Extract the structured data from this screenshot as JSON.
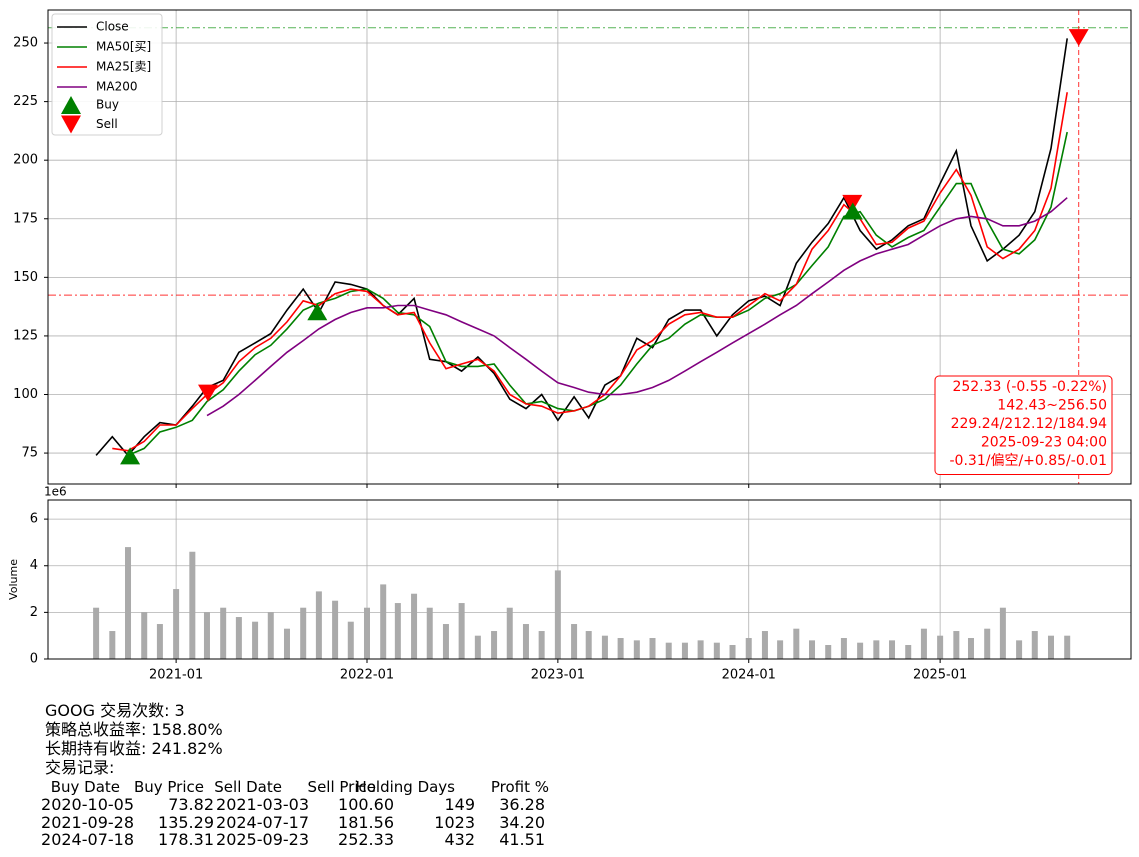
{
  "chart_data": [
    {
      "type": "line",
      "x": [
        "2020-08",
        "2020-09",
        "2020-10",
        "2020-11",
        "2020-12",
        "2021-01",
        "2021-02",
        "2021-03",
        "2021-04",
        "2021-05",
        "2021-06",
        "2021-07",
        "2021-08",
        "2021-09",
        "2021-10",
        "2021-11",
        "2021-12",
        "2022-01",
        "2022-02",
        "2022-03",
        "2022-04",
        "2022-05",
        "2022-06",
        "2022-07",
        "2022-08",
        "2022-09",
        "2022-10",
        "2022-11",
        "2022-12",
        "2023-01",
        "2023-02",
        "2023-03",
        "2023-04",
        "2023-05",
        "2023-06",
        "2023-07",
        "2023-08",
        "2023-09",
        "2023-10",
        "2023-11",
        "2023-12",
        "2024-01",
        "2024-02",
        "2024-03",
        "2024-04",
        "2024-05",
        "2024-06",
        "2024-07",
        "2024-08",
        "2024-09",
        "2024-10",
        "2024-11",
        "2024-12",
        "2025-01",
        "2025-02",
        "2025-03",
        "2025-04",
        "2025-05",
        "2025-06",
        "2025-07",
        "2025-08",
        "2025-09"
      ],
      "series": [
        {
          "name": "Close",
          "color": "#000000",
          "values": [
            74,
            82,
            74,
            82,
            88,
            87,
            95,
            103,
            106,
            118,
            122,
            126,
            136,
            145,
            135,
            148,
            147,
            145,
            138,
            134,
            141,
            115,
            114,
            110,
            116,
            109,
            98,
            94,
            100,
            89,
            99,
            90,
            104,
            108,
            124,
            120,
            132,
            136,
            136,
            125,
            134,
            140,
            142,
            138,
            156,
            165,
            173,
            184,
            170,
            162,
            166,
            172,
            175,
            190,
            204,
            172,
            157,
            162,
            168,
            178,
            205,
            252
          ]
        },
        {
          "name": "MA50[买]",
          "color": "#008000",
          "values": [
            null,
            null,
            74,
            77,
            84,
            86,
            89,
            97,
            102,
            110,
            117,
            121,
            128,
            136,
            139,
            141,
            144,
            145,
            141,
            135,
            134,
            129,
            114,
            112,
            112,
            113,
            104,
            96,
            97,
            94,
            93,
            95,
            98,
            104,
            113,
            121,
            124,
            130,
            134,
            133,
            133,
            136,
            141,
            143,
            147,
            155,
            163,
            176,
            178,
            168,
            163,
            167,
            170,
            180,
            190,
            190,
            174,
            162,
            160,
            166,
            180,
            212
          ]
        },
        {
          "name": "MA25[卖]",
          "color": "#ff0000",
          "values": [
            null,
            77,
            76,
            80,
            87,
            87,
            94,
            100,
            105,
            114,
            120,
            124,
            131,
            140,
            138,
            143,
            145,
            144,
            138,
            134,
            135,
            122,
            111,
            113,
            115,
            110,
            100,
            96,
            95,
            92,
            93,
            95,
            100,
            108,
            119,
            123,
            130,
            134,
            135,
            133,
            133,
            138,
            143,
            140,
            147,
            162,
            170,
            181,
            175,
            164,
            165,
            171,
            174,
            186,
            196,
            185,
            163,
            158,
            162,
            170,
            188,
            229
          ]
        },
        {
          "name": "MA200",
          "color": "#800080",
          "values": [
            null,
            null,
            null,
            null,
            null,
            null,
            null,
            91,
            95,
            100,
            106,
            112,
            118,
            123,
            128,
            132,
            135,
            137,
            137,
            138,
            138,
            136,
            134,
            131,
            128,
            125,
            120,
            115,
            110,
            105,
            103,
            101,
            100,
            100,
            101,
            103,
            106,
            110,
            114,
            118,
            122,
            126,
            130,
            134,
            138,
            143,
            148,
            153,
            157,
            160,
            162,
            164,
            168,
            172,
            175,
            176,
            175,
            172,
            172,
            174,
            178,
            184
          ]
        }
      ],
      "markers": [
        {
          "name": "Buy",
          "color": "#008000"
        },
        {
          "name": "Sell",
          "color": "#ff0000"
        }
      ],
      "hlines": [
        {
          "value": 256.5,
          "color": "#2ca02c"
        },
        {
          "value": 142.43,
          "color": "#ff0000"
        }
      ],
      "vline_color": "#ff0000",
      "annotation": [
        "252.33 (-0.55 -0.22%)",
        "142.43~256.50",
        "229.24/212.12/184.94",
        "2025-09-23 04:00",
        "-0.31/偏空/+0.85/-0.01"
      ],
      "xlim": [
        "2020-05",
        "2026-01"
      ],
      "xticks": [
        "2021-01",
        "2022-01",
        "2023-01",
        "2024-01",
        "2025-01"
      ],
      "ylim": [
        61.8,
        264.1
      ],
      "yticks": [
        75,
        100,
        125,
        150,
        175,
        200,
        225,
        250
      ],
      "grid": true,
      "legend": "upper left"
    },
    {
      "type": "bar",
      "ylabel": "Volume",
      "offset_label": "1e6",
      "color": "#aaaaaa",
      "values": [
        2.2,
        1.2,
        4.8,
        2.0,
        1.5,
        3.0,
        4.6,
        2.0,
        2.2,
        1.8,
        1.6,
        2.0,
        1.3,
        2.2,
        2.9,
        2.5,
        1.6,
        2.2,
        3.2,
        2.4,
        2.8,
        2.2,
        1.5,
        2.4,
        1.0,
        1.2,
        2.2,
        1.5,
        1.2,
        3.8,
        1.5,
        1.2,
        1.0,
        0.9,
        0.8,
        0.9,
        0.7,
        0.7,
        0.8,
        0.7,
        0.6,
        0.9,
        1.2,
        0.8,
        1.3,
        0.8,
        0.6,
        0.9,
        0.7,
        0.8,
        0.8,
        0.6,
        1.3,
        1.0,
        1.2,
        0.9,
        1.3,
        2.2,
        0.8,
        1.2,
        1.0,
        1.0
      ],
      "ylim": [
        0,
        6.82
      ],
      "yticks": [
        0,
        2,
        4,
        6
      ],
      "grid": true
    }
  ],
  "summary": [
    "GOOG 交易次数: 3",
    "策略总收益率: 158.80%",
    "长期持有收益: 241.82%",
    "交易记录:"
  ],
  "trades": {
    "columns": [
      "Buy Date",
      "Buy Price",
      "Sell Date",
      "Sell Price",
      "Holding Days",
      "Profit %"
    ],
    "rows": [
      [
        "2020-10-05",
        "73.82",
        "2021-03-03",
        "100.60",
        "149",
        "36.28"
      ],
      [
        "2021-09-28",
        "135.29",
        "2024-07-17",
        "181.56",
        "1023",
        "34.20"
      ],
      [
        "2024-07-18",
        "178.31",
        "2025-09-23",
        "252.33",
        "432",
        "41.51"
      ]
    ]
  }
}
